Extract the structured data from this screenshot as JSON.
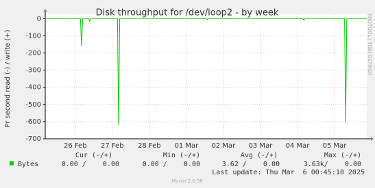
{
  "chart_data": {
    "type": "line",
    "title": "Disk throughput for /dev/loop2 - by week",
    "y_label": "Pr second read (-) / write (+)",
    "side_label": "RRDTOOL / TOBI OETIKER",
    "xlim": [
      -0.31,
      8.37
    ],
    "xticks": [
      {
        "value": 0.5,
        "label": "26 Feb"
      },
      {
        "value": 1.5,
        "label": "27 Feb"
      },
      {
        "value": 2.5,
        "label": "28 Feb"
      },
      {
        "value": 3.5,
        "label": "01 Mar"
      },
      {
        "value": 4.5,
        "label": "02 Mar"
      },
      {
        "value": 5.5,
        "label": "03 Mar"
      },
      {
        "value": 6.5,
        "label": "04 Mar"
      },
      {
        "value": 7.5,
        "label": "05 Mar"
      }
    ],
    "ylim": [
      -700,
      25
    ],
    "yticks": [
      -700,
      -600,
      -500,
      -400,
      -300,
      -200,
      -100,
      0
    ],
    "grid": true,
    "x": [
      -0.31,
      0.64,
      0.67,
      0.7,
      0.86,
      0.89,
      0.92,
      1.64,
      1.67,
      1.7,
      4.04,
      4.07,
      4.1,
      6.64,
      6.67,
      6.7,
      7.77,
      7.8,
      7.83,
      8.37
    ],
    "series": [
      {
        "name": "Bytes",
        "color": "#00cc00",
        "values": [
          0,
          0,
          -160,
          0,
          0,
          -15,
          0,
          0,
          -620,
          0,
          0,
          -5,
          0,
          0,
          -8,
          0,
          0,
          -605,
          0,
          0
        ]
      }
    ],
    "legend_headers": [
      "Cur (-/+)",
      "Min (-/+)",
      "Avg (-/+)",
      "Max (-/+)"
    ],
    "legend_values": [
      "0.00 /    0.00",
      "0.00 /    0.00",
      "3.62 /    0.00",
      "3.63k/    0.00"
    ],
    "last_update": "Last update: Thu Mar  6 00:45:10 2025",
    "footer": "Munin 2.0.56"
  }
}
